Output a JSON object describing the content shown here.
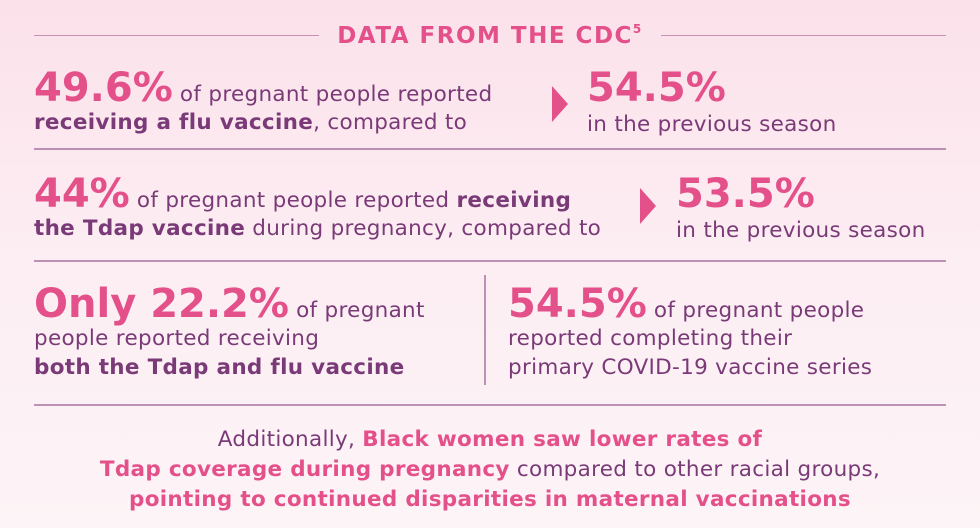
{
  "header": {
    "title": "DATA FROM THE CDC",
    "superscript": "5"
  },
  "stat1": {
    "value": "49.6%",
    "text_a": " of pregnant people reported",
    "bold": "receiving a flu vaccine",
    "text_b": ", compared to",
    "compare_value": "54.5%",
    "compare_text": "in the previous season"
  },
  "stat2": {
    "value": "44%",
    "text_a": " of pregnant people reported ",
    "bold_a": "receiving",
    "bold_b": "the Tdap vaccine",
    "text_b": " during pregnancy, compared to",
    "compare_value": "53.5%",
    "compare_text": "in the previous season"
  },
  "stat3": {
    "value": "Only 22.2%",
    "text_a": " of pregnant",
    "text_b": "people reported receiving",
    "bold": "both the Tdap and flu vaccine"
  },
  "stat4": {
    "value": "54.5%",
    "text_a": " of pregnant people",
    "text_b": "reported completing their",
    "text_c": "primary COVID-19 vaccine series"
  },
  "footer": {
    "text_a": "Additionally, ",
    "bold_a": "Black women saw lower rates of",
    "bold_b": "Tdap coverage during pregnancy",
    "text_b": " compared to other racial groups,",
    "bold_c": "pointing to continued disparities in maternal vaccinations"
  },
  "colors": {
    "accent": "#e4508a",
    "text": "#7a3a78",
    "background": "#fbe1ea"
  }
}
